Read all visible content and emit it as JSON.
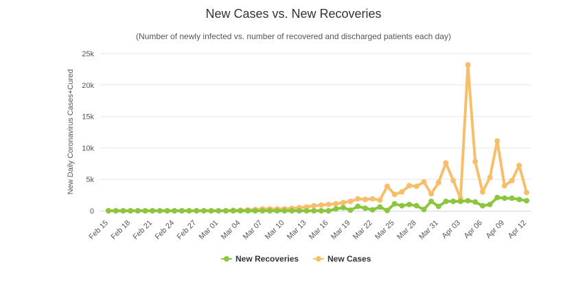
{
  "chart_data": {
    "type": "line",
    "title": "New Cases vs. New Recoveries",
    "subtitle": "(Number of newly infected vs. number of recovered and discharged patients each day)",
    "xlabel": "",
    "ylabel": "New Daily Coronavirus Cases+Cured",
    "ylim": [
      0,
      25000
    ],
    "yticks": [
      0,
      5000,
      10000,
      15000,
      20000,
      25000
    ],
    "ytick_labels": [
      "0",
      "5k",
      "10k",
      "15k",
      "20k",
      "25k"
    ],
    "grid": true,
    "legend_position": "bottom-center",
    "x": [
      "Feb 15",
      "Feb 16",
      "Feb 17",
      "Feb 18",
      "Feb 19",
      "Feb 20",
      "Feb 21",
      "Feb 22",
      "Feb 23",
      "Feb 24",
      "Feb 25",
      "Feb 26",
      "Feb 27",
      "Feb 28",
      "Feb 29",
      "Mar 01",
      "Mar 02",
      "Mar 03",
      "Mar 04",
      "Mar 05",
      "Mar 06",
      "Mar 07",
      "Mar 08",
      "Mar 09",
      "Mar 10",
      "Mar 11",
      "Mar 12",
      "Mar 13",
      "Mar 14",
      "Mar 15",
      "Mar 16",
      "Mar 17",
      "Mar 18",
      "Mar 19",
      "Mar 20",
      "Mar 21",
      "Mar 22",
      "Mar 23",
      "Mar 24",
      "Mar 25",
      "Mar 26",
      "Mar 27",
      "Mar 28",
      "Mar 29",
      "Mar 30",
      "Mar 31",
      "Apr 01",
      "Apr 02",
      "Apr 03",
      "Apr 04",
      "Apr 05",
      "Apr 06",
      "Apr 07",
      "Apr 08",
      "Apr 09",
      "Apr 10",
      "Apr 11",
      "Apr 12"
    ],
    "x_tick_labels": [
      "Feb 15",
      "Feb 18",
      "Feb 21",
      "Feb 24",
      "Feb 27",
      "Mar 01",
      "Mar 04",
      "Mar 07",
      "Mar 10",
      "Mar 13",
      "Mar 16",
      "Mar 19",
      "Mar 22",
      "Mar 25",
      "Mar 28",
      "Mar 31",
      "Apr 03",
      "Apr 06",
      "Apr 09",
      "Apr 12"
    ],
    "series": [
      {
        "name": "New Recoveries",
        "color": "#8cc63f",
        "values": [
          0,
          0,
          0,
          0,
          0,
          0,
          0,
          0,
          0,
          0,
          0,
          0,
          0,
          0,
          0,
          0,
          0,
          0,
          0,
          0,
          0,
          0,
          0,
          0,
          0,
          0,
          0,
          0,
          0,
          0,
          0,
          300,
          500,
          100,
          700,
          400,
          150,
          600,
          50,
          1100,
          800,
          1000,
          800,
          200,
          1500,
          700,
          1500,
          1500,
          1500,
          1600,
          1400,
          800,
          1000,
          2100,
          2000,
          2000,
          1800,
          1600
        ]
      },
      {
        "name": "New Cases",
        "color": "#f7be6c",
        "values": [
          0,
          0,
          0,
          0,
          0,
          0,
          0,
          0,
          0,
          0,
          0,
          0,
          0,
          0,
          0,
          0,
          0,
          100,
          100,
          150,
          200,
          300,
          300,
          300,
          300,
          400,
          500,
          600,
          800,
          900,
          1000,
          1100,
          1300,
          1500,
          1900,
          1800,
          1900,
          1700,
          3900,
          2600,
          3000,
          4000,
          3900,
          4600,
          2700,
          4500,
          7600,
          4800,
          2000,
          23200,
          7800,
          3000,
          5300,
          11100,
          4000,
          4800,
          7200,
          2900
        ]
      }
    ]
  }
}
